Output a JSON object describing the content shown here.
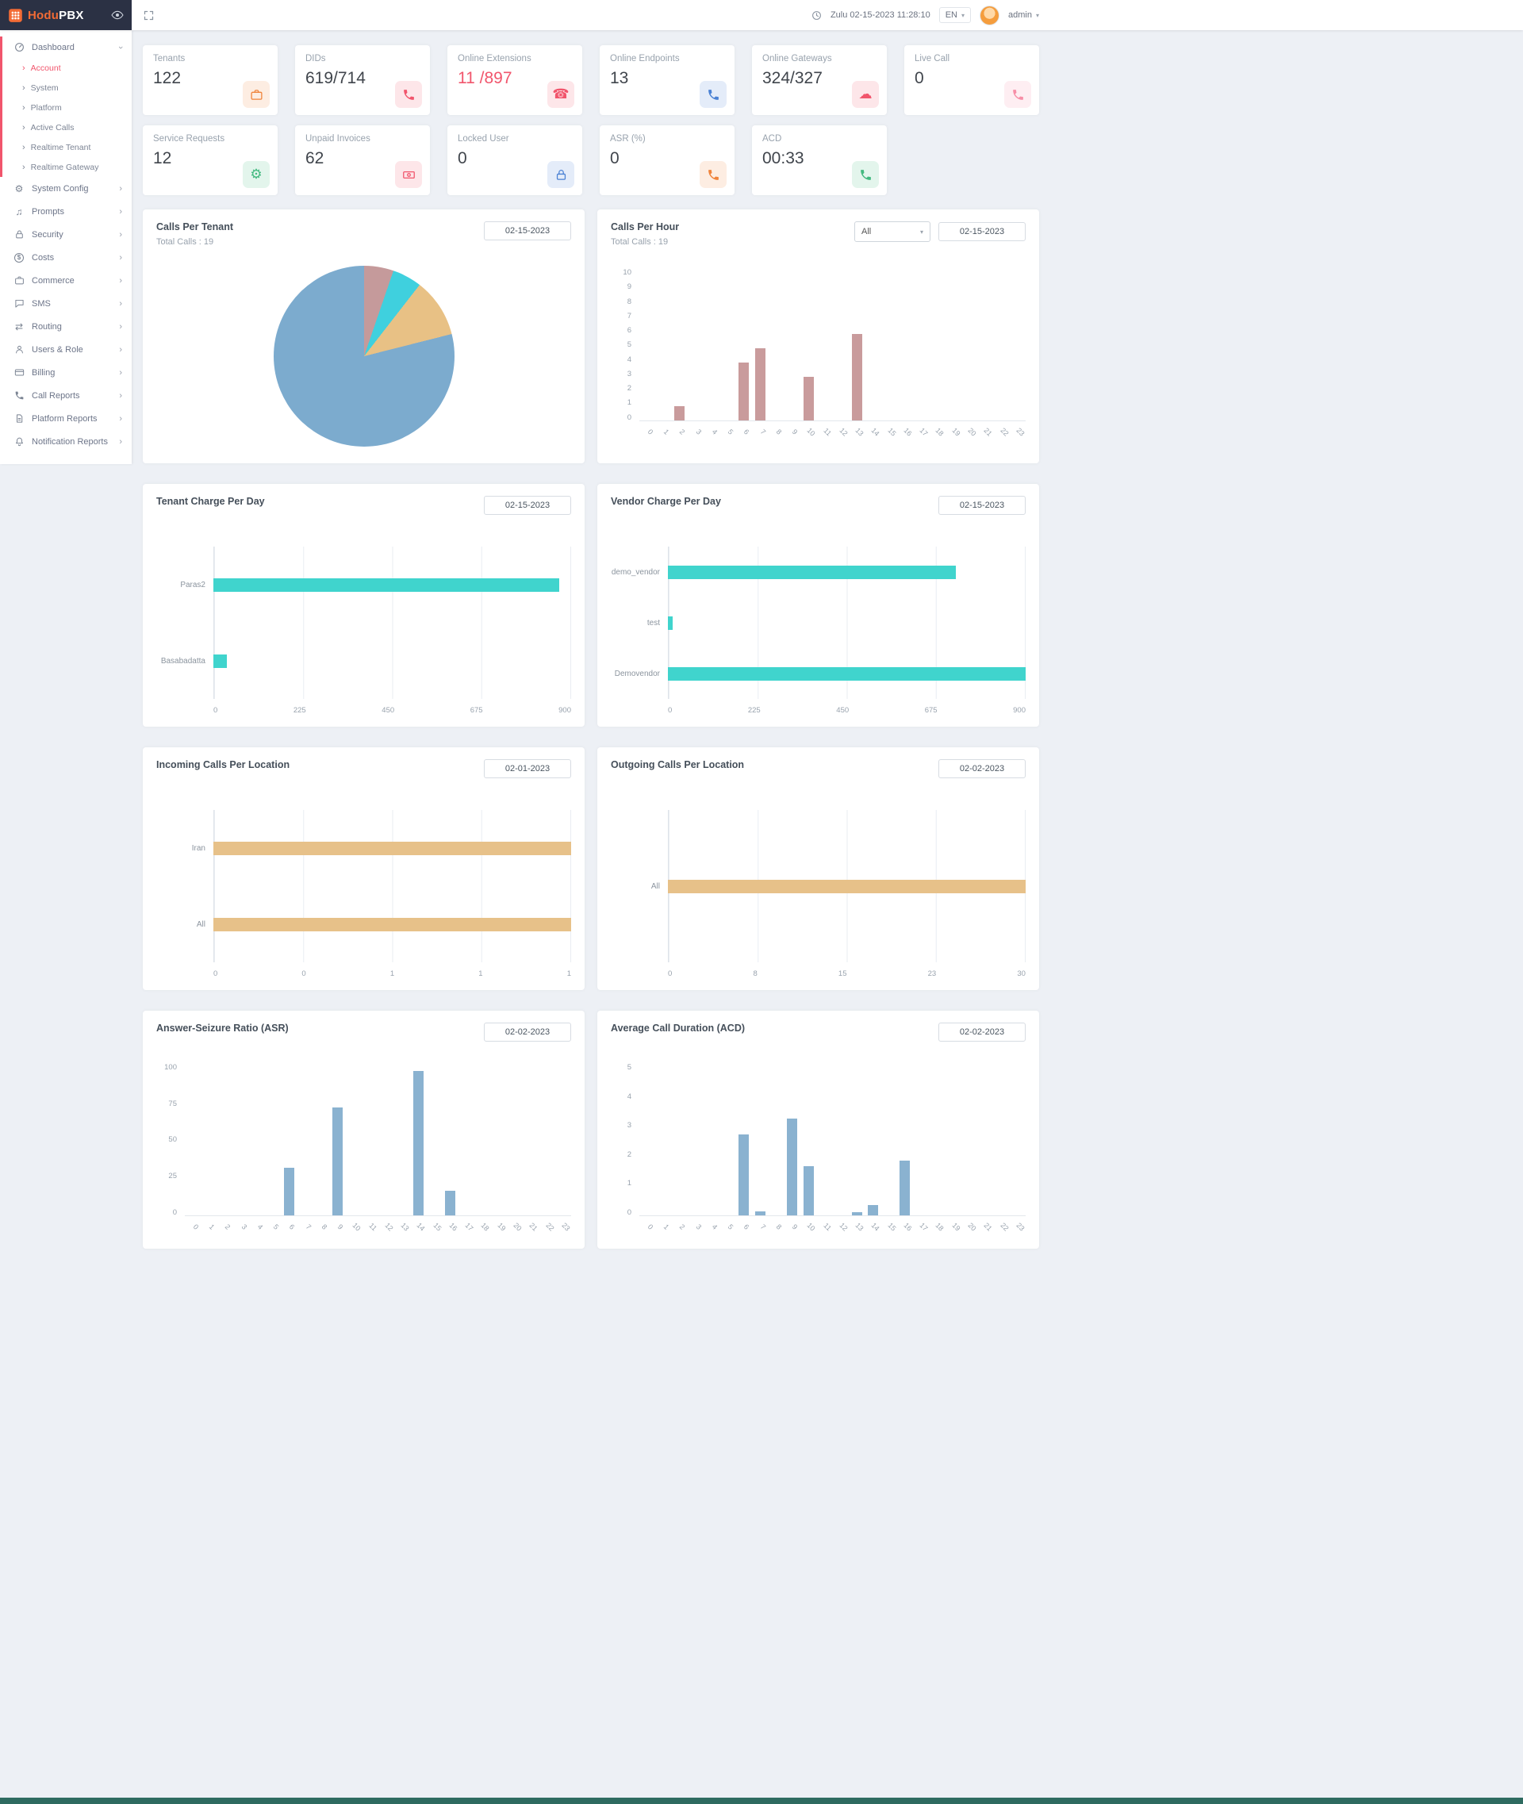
{
  "theme": {
    "red": "#f1556c",
    "orange": "#f26b35",
    "navy": "#2b3144",
    "footer": "#2e6b60"
  },
  "header": {
    "brand_hodu": "Hodu",
    "brand_pbx": "PBX",
    "datetime": "Zulu 02-15-2023 11:28:10",
    "language": "EN",
    "user": "admin"
  },
  "sidebar": {
    "dashboard": {
      "label": "Dashboard",
      "icon": "gauge"
    },
    "dashboard_children": [
      {
        "label": "Account",
        "active": true
      },
      {
        "label": "System",
        "active": false
      },
      {
        "label": "Platform",
        "active": false
      },
      {
        "label": "Active Calls",
        "active": false
      },
      {
        "label": "Realtime Tenant",
        "active": false
      },
      {
        "label": "Realtime Gateway",
        "active": false
      }
    ],
    "items": [
      {
        "label": "System Config",
        "icon": "gears"
      },
      {
        "label": "Prompts",
        "icon": "music"
      },
      {
        "label": "Security",
        "icon": "lock"
      },
      {
        "label": "Costs",
        "icon": "dollar"
      },
      {
        "label": "Commerce",
        "icon": "briefcase"
      },
      {
        "label": "SMS",
        "icon": "chat"
      },
      {
        "label": "Routing",
        "icon": "routing"
      },
      {
        "label": "Users & Role",
        "icon": "user"
      },
      {
        "label": "Billing",
        "icon": "card"
      },
      {
        "label": "Call Reports",
        "icon": "phone-doc"
      },
      {
        "label": "Platform Reports",
        "icon": "document"
      },
      {
        "label": "Notification Reports",
        "icon": "bell"
      }
    ]
  },
  "stats_row1": [
    {
      "label": "Tenants",
      "value": "122",
      "icon": "briefcase",
      "accent": "#f0833a"
    },
    {
      "label": "DIDs",
      "value": "619/714",
      "icon": "phone",
      "accent": "#f1556c"
    },
    {
      "label": "Online Extensions",
      "value": "11 /897",
      "icon": "desk-phone",
      "accent": "#f1556c",
      "value_color": "#f1556c"
    },
    {
      "label": "Online Endpoints",
      "value": "13",
      "icon": "phone",
      "accent": "#4a81d4"
    },
    {
      "label": "Online Gateways",
      "value": "324/327",
      "icon": "cloud",
      "accent": "#f1556c"
    },
    {
      "label": "Live Call",
      "value": "0",
      "icon": "phone",
      "accent": "#f78fa7"
    }
  ],
  "stats_row2": [
    {
      "label": "Service Requests",
      "value": "12",
      "icon": "gear",
      "accent": "#43b97f"
    },
    {
      "label": "Unpaid Invoices",
      "value": "62",
      "icon": "cash",
      "accent": "#f1556c"
    },
    {
      "label": "Locked User",
      "value": "0",
      "icon": "lock",
      "accent": "#4a81d4"
    },
    {
      "label": "ASR (%)",
      "value": "0",
      "icon": "phone",
      "accent": "#f0833a"
    },
    {
      "label": "ACD",
      "value": "00:33",
      "icon": "phone",
      "accent": "#43b97f"
    }
  ],
  "chart_data": [
    {
      "id": "calls_per_tenant",
      "type": "pie",
      "title": "Calls Per Tenant",
      "subtitle": "Total Calls : 19",
      "date": "02-15-2023",
      "values": [
        1,
        1,
        2,
        15
      ],
      "colors": [
        "#c59a9b",
        "#3fd0de",
        "#e8c185",
        "#7cabce"
      ]
    },
    {
      "id": "calls_per_hour",
      "type": "bar",
      "title": "Calls Per Hour",
      "subtitle": "Total Calls : 19",
      "filter": "All",
      "date": "02-15-2023",
      "x": [
        "0",
        "1",
        "2",
        "3",
        "4",
        "5",
        "6",
        "7",
        "8",
        "9",
        "10",
        "11",
        "12",
        "13",
        "14",
        "15",
        "16",
        "17",
        "18",
        "19",
        "20",
        "21",
        "22",
        "23"
      ],
      "values": [
        0,
        0,
        1,
        0,
        0,
        0,
        4,
        5,
        0,
        0,
        3,
        0,
        0,
        6,
        0,
        0,
        0,
        0,
        0,
        0,
        0,
        0,
        0,
        0
      ],
      "ylim": [
        0,
        10
      ],
      "yticks": [
        0,
        1,
        2,
        3,
        4,
        5,
        6,
        7,
        8,
        9,
        10
      ],
      "color": "#c99b9c"
    },
    {
      "id": "tenant_charge_per_day",
      "type": "hbar",
      "title": "Tenant Charge Per Day",
      "date": "02-15-2023",
      "categories": [
        "Paras2",
        "Basabadatta"
      ],
      "values": [
        870,
        33
      ],
      "xlim": [
        0,
        900
      ],
      "xticks": [
        "0",
        "225",
        "450",
        "675",
        "900"
      ],
      "color": "#40d4cd"
    },
    {
      "id": "vendor_charge_per_day",
      "type": "hbar",
      "title": "Vendor Charge Per Day",
      "date": "02-15-2023",
      "categories": [
        "demo_vendor",
        "test",
        "Demovendor"
      ],
      "values": [
        725,
        12,
        900
      ],
      "xlim": [
        0,
        900
      ],
      "xticks": [
        "0",
        "225",
        "450",
        "675",
        "900"
      ],
      "color": "#40d4cd"
    },
    {
      "id": "incoming_calls_per_location",
      "type": "hbar",
      "title": "Incoming Calls Per Location",
      "date": "02-01-2023",
      "categories": [
        "Iran",
        "All"
      ],
      "values": [
        1,
        1
      ],
      "xlim": [
        0,
        1
      ],
      "xticks": [
        "0",
        "0",
        "1",
        "1",
        "1"
      ],
      "color": "#e7c189"
    },
    {
      "id": "outgoing_calls_per_location",
      "type": "hbar",
      "title": "Outgoing Calls Per Location",
      "date": "02-02-2023",
      "categories": [
        "All"
      ],
      "values": [
        30
      ],
      "xlim": [
        0,
        30
      ],
      "xticks": [
        "0",
        "8",
        "15",
        "23",
        "30"
      ],
      "color": "#e7c189"
    },
    {
      "id": "asr",
      "type": "bar",
      "title": "Answer-Seizure Ratio (ASR)",
      "date": "02-02-2023",
      "x": [
        "0",
        "1",
        "2",
        "3",
        "4",
        "5",
        "6",
        "7",
        "8",
        "9",
        "10",
        "11",
        "12",
        "13",
        "14",
        "15",
        "16",
        "17",
        "18",
        "19",
        "20",
        "21",
        "22",
        "23"
      ],
      "values": [
        0,
        0,
        0,
        0,
        0,
        0,
        33,
        0,
        0,
        75,
        0,
        0,
        0,
        0,
        100,
        0,
        17,
        0,
        0,
        0,
        0,
        0,
        0,
        0
      ],
      "ylim": [
        0,
        100
      ],
      "yticks": [
        0,
        25,
        50,
        75,
        100
      ],
      "color": "#8ab2d0"
    },
    {
      "id": "acd",
      "type": "bar",
      "title": "Average Call Duration (ACD)",
      "date": "02-02-2023",
      "x": [
        "0",
        "1",
        "2",
        "3",
        "4",
        "5",
        "6",
        "7",
        "8",
        "9",
        "10",
        "11",
        "12",
        "13",
        "14",
        "15",
        "16",
        "17",
        "18",
        "19",
        "20",
        "21",
        "22",
        "23"
      ],
      "values": [
        0,
        0,
        0,
        0,
        0,
        0,
        2.8,
        0.15,
        0,
        3.35,
        1.7,
        0,
        0,
        0.1,
        0.35,
        0,
        1.9,
        0,
        0,
        0,
        0,
        0,
        0,
        0
      ],
      "ylim": [
        0,
        5
      ],
      "yticks": [
        0,
        1,
        2,
        3,
        4,
        5
      ],
      "color": "#8ab2d0"
    }
  ]
}
